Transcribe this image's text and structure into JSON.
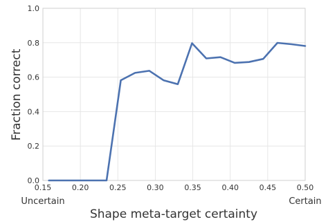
{
  "chart_data": {
    "type": "line",
    "xlabel": "Shape meta-target certainty",
    "ylabel": "Fraction correct",
    "xlim": [
      0.15,
      0.5
    ],
    "ylim": [
      0.0,
      1.0
    ],
    "x_ticks": [
      "0.15",
      "0.20",
      "0.25",
      "0.30",
      "0.35",
      "0.40",
      "0.45",
      "0.50"
    ],
    "y_ticks": [
      "0.0",
      "0.2",
      "0.4",
      "0.6",
      "0.8",
      "1.0"
    ],
    "x_end_labels": {
      "left": "Uncertain",
      "right": "Certain"
    },
    "grid": true,
    "series": [
      {
        "color": "#4c72b0",
        "x": [
          0.158,
          0.176,
          0.196,
          0.215,
          0.235,
          0.254,
          0.273,
          0.292,
          0.311,
          0.33,
          0.349,
          0.368,
          0.387,
          0.406,
          0.425,
          0.444,
          0.463,
          0.482,
          0.5
        ],
        "y": [
          0.0,
          0.0,
          0.0,
          0.0,
          0.0,
          0.582,
          0.625,
          0.637,
          0.582,
          0.559,
          0.797,
          0.709,
          0.716,
          0.683,
          0.688,
          0.706,
          0.799,
          0.791,
          0.781
        ]
      }
    ]
  }
}
